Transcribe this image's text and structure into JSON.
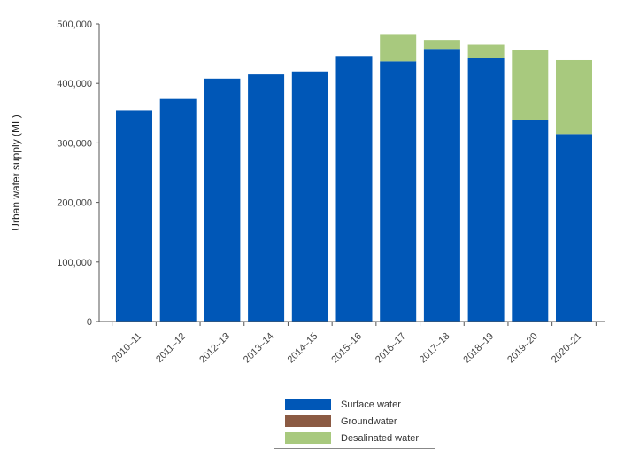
{
  "chart_data": {
    "type": "bar",
    "stacked": true,
    "title": "",
    "xlabel": "",
    "ylabel": "Urban water supply (ML)",
    "ylim": [
      0,
      500000
    ],
    "yticks": [
      0,
      100000,
      200000,
      300000,
      400000,
      500000
    ],
    "ytick_labels": [
      "0",
      "100,000",
      "200,000",
      "300,000",
      "400,000",
      "500,000"
    ],
    "grid": false,
    "legend_position": "bottom-center",
    "categories": [
      "2010–11",
      "2011–12",
      "2012–13",
      "2013–14",
      "2014–15",
      "2015–16",
      "2016–17",
      "2017–18",
      "2018–19",
      "2019–20",
      "2020–21"
    ],
    "series": [
      {
        "name": "Surface water",
        "color": "#0057b7",
        "values": [
          355000,
          374000,
          408000,
          415000,
          420000,
          446000,
          437000,
          458000,
          443000,
          338000,
          315000
        ]
      },
      {
        "name": "Groundwater",
        "color": "#8b5a43",
        "values": [
          0,
          0,
          0,
          0,
          0,
          0,
          0,
          0,
          0,
          0,
          0
        ]
      },
      {
        "name": "Desalinated water",
        "color": "#a8c97e",
        "values": [
          0,
          0,
          0,
          0,
          0,
          0,
          46000,
          15000,
          22000,
          118000,
          124000
        ]
      }
    ]
  }
}
